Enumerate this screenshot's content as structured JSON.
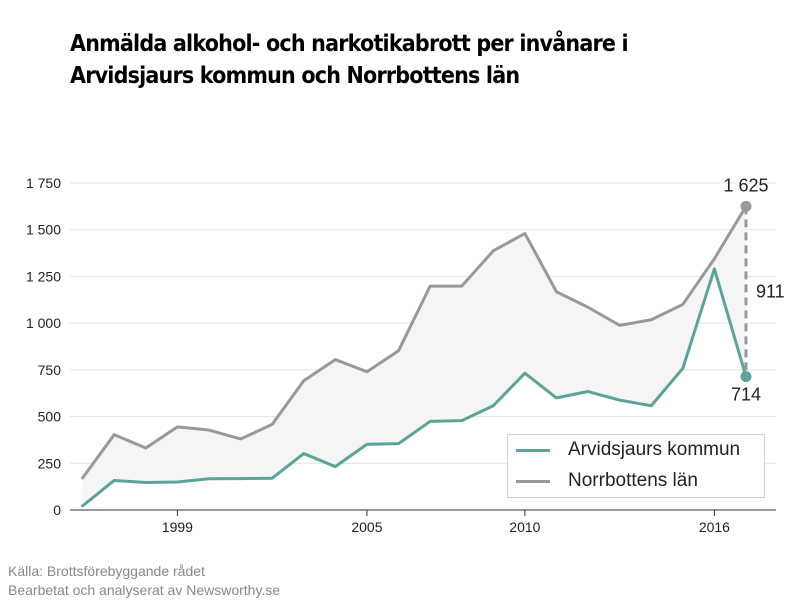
{
  "title": "Anmälda alkohol- och narkotikabrott per invånare i Arvidsjaurs kommun och Norrbottens län",
  "source": {
    "line1": "Källa: Brottsförebyggande rådet",
    "line2": "Bearbetat och analyserat av Newsworthy.se"
  },
  "chart_data": {
    "type": "line",
    "x": [
      1996,
      1997,
      1998,
      1999,
      2000,
      2001,
      2002,
      2003,
      2004,
      2005,
      2006,
      2007,
      2008,
      2009,
      2010,
      2011,
      2012,
      2013,
      2014,
      2015,
      2016,
      2017
    ],
    "xticks": [
      1999,
      2005,
      2010,
      2016
    ],
    "xtick_labels": [
      "1999",
      "2005",
      "2010",
      "2016"
    ],
    "xlim": [
      1995.6,
      2017.95
    ],
    "ylim": [
      0,
      1750
    ],
    "yticks": [
      0,
      250,
      500,
      750,
      1000,
      1250,
      1500,
      1750
    ],
    "ytick_labels": [
      "0",
      "250",
      "500",
      "750",
      "1 000",
      "1 250",
      "1 500",
      "1 750"
    ],
    "grid": true,
    "legend_position": "bottom-right",
    "series": [
      {
        "name": "Arvidsjaurs kommun",
        "color": "#5aa498",
        "values": [
          22,
          158,
          147,
          150,
          167,
          168,
          170,
          302,
          232,
          352,
          355,
          474,
          478,
          558,
          732,
          600,
          634,
          588,
          558,
          758,
          1290,
          714
        ]
      },
      {
        "name": "Norrbottens län",
        "color": "#999999",
        "values": [
          172,
          403,
          332,
          445,
          428,
          380,
          458,
          692,
          805,
          740,
          852,
          1198,
          1198,
          1387,
          1480,
          1168,
          1085,
          988,
          1018,
          1100,
          1345,
          1625
        ]
      }
    ],
    "annotations": {
      "top_label": "1 625",
      "bottom_label": "714",
      "diff_label": "911"
    }
  }
}
